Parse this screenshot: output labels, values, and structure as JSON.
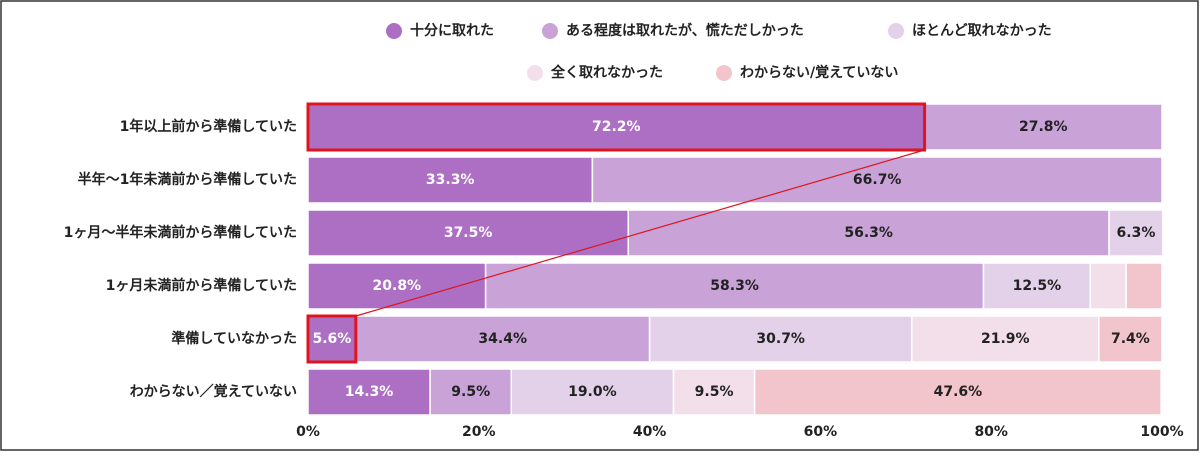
{
  "chart_data": {
    "type": "stacked-bar-horizontal",
    "categories": [
      "1年以上前から準備していた",
      "半年〜1年未満前から準備していた",
      "1ヶ月〜半年未満前から準備していた",
      "1ヶ月未満前から準備していた",
      "準備していなかった",
      "わからない／覚えていない"
    ],
    "series": [
      {
        "name": "十分に取れた",
        "color": "#ad6fc4",
        "values": [
          72.2,
          33.3,
          37.5,
          20.8,
          5.6,
          14.3
        ],
        "value_labels": [
          "72.2%",
          "33.3%",
          "37.5%",
          "20.8%",
          "5.6%",
          "14.3%"
        ]
      },
      {
        "name": "ある程度は取れたが、慌ただしかった",
        "color": "#c9a2d8",
        "values": [
          27.8,
          66.7,
          56.3,
          58.3,
          34.4,
          9.5
        ],
        "value_labels": [
          "27.8%",
          "66.7%",
          "56.3%",
          "58.3%",
          "34.4%",
          "9.5%"
        ]
      },
      {
        "name": "ほとんど取れなかった",
        "color": "#e3d0e9",
        "values": [
          null,
          null,
          6.3,
          12.5,
          30.7,
          19.0
        ],
        "value_labels": [
          null,
          null,
          "6.3%",
          "12.5%",
          "30.7%",
          "19.0%"
        ]
      },
      {
        "name": "全く取れなかった",
        "color": "#f3dfe9",
        "values": [
          null,
          null,
          null,
          4.2,
          21.9,
          9.5
        ],
        "value_labels": [
          null,
          null,
          null,
          null,
          "21.9%",
          "9.5%"
        ]
      },
      {
        "name": "わからない/覚えていない",
        "color": "#f2c4cb",
        "values": [
          null,
          null,
          null,
          4.2,
          7.4,
          47.6
        ],
        "value_labels": [
          null,
          null,
          null,
          null,
          "7.4%",
          "47.6%"
        ]
      }
    ],
    "xlim": [
      0,
      100
    ],
    "xticks": [
      {
        "value": 0,
        "label": "0%"
      },
      {
        "value": 20,
        "label": "20%"
      },
      {
        "value": 40,
        "label": "40%"
      },
      {
        "value": 60,
        "label": "60%"
      },
      {
        "value": 80,
        "label": "80%"
      },
      {
        "value": 100,
        "label": "100%"
      }
    ]
  }
}
